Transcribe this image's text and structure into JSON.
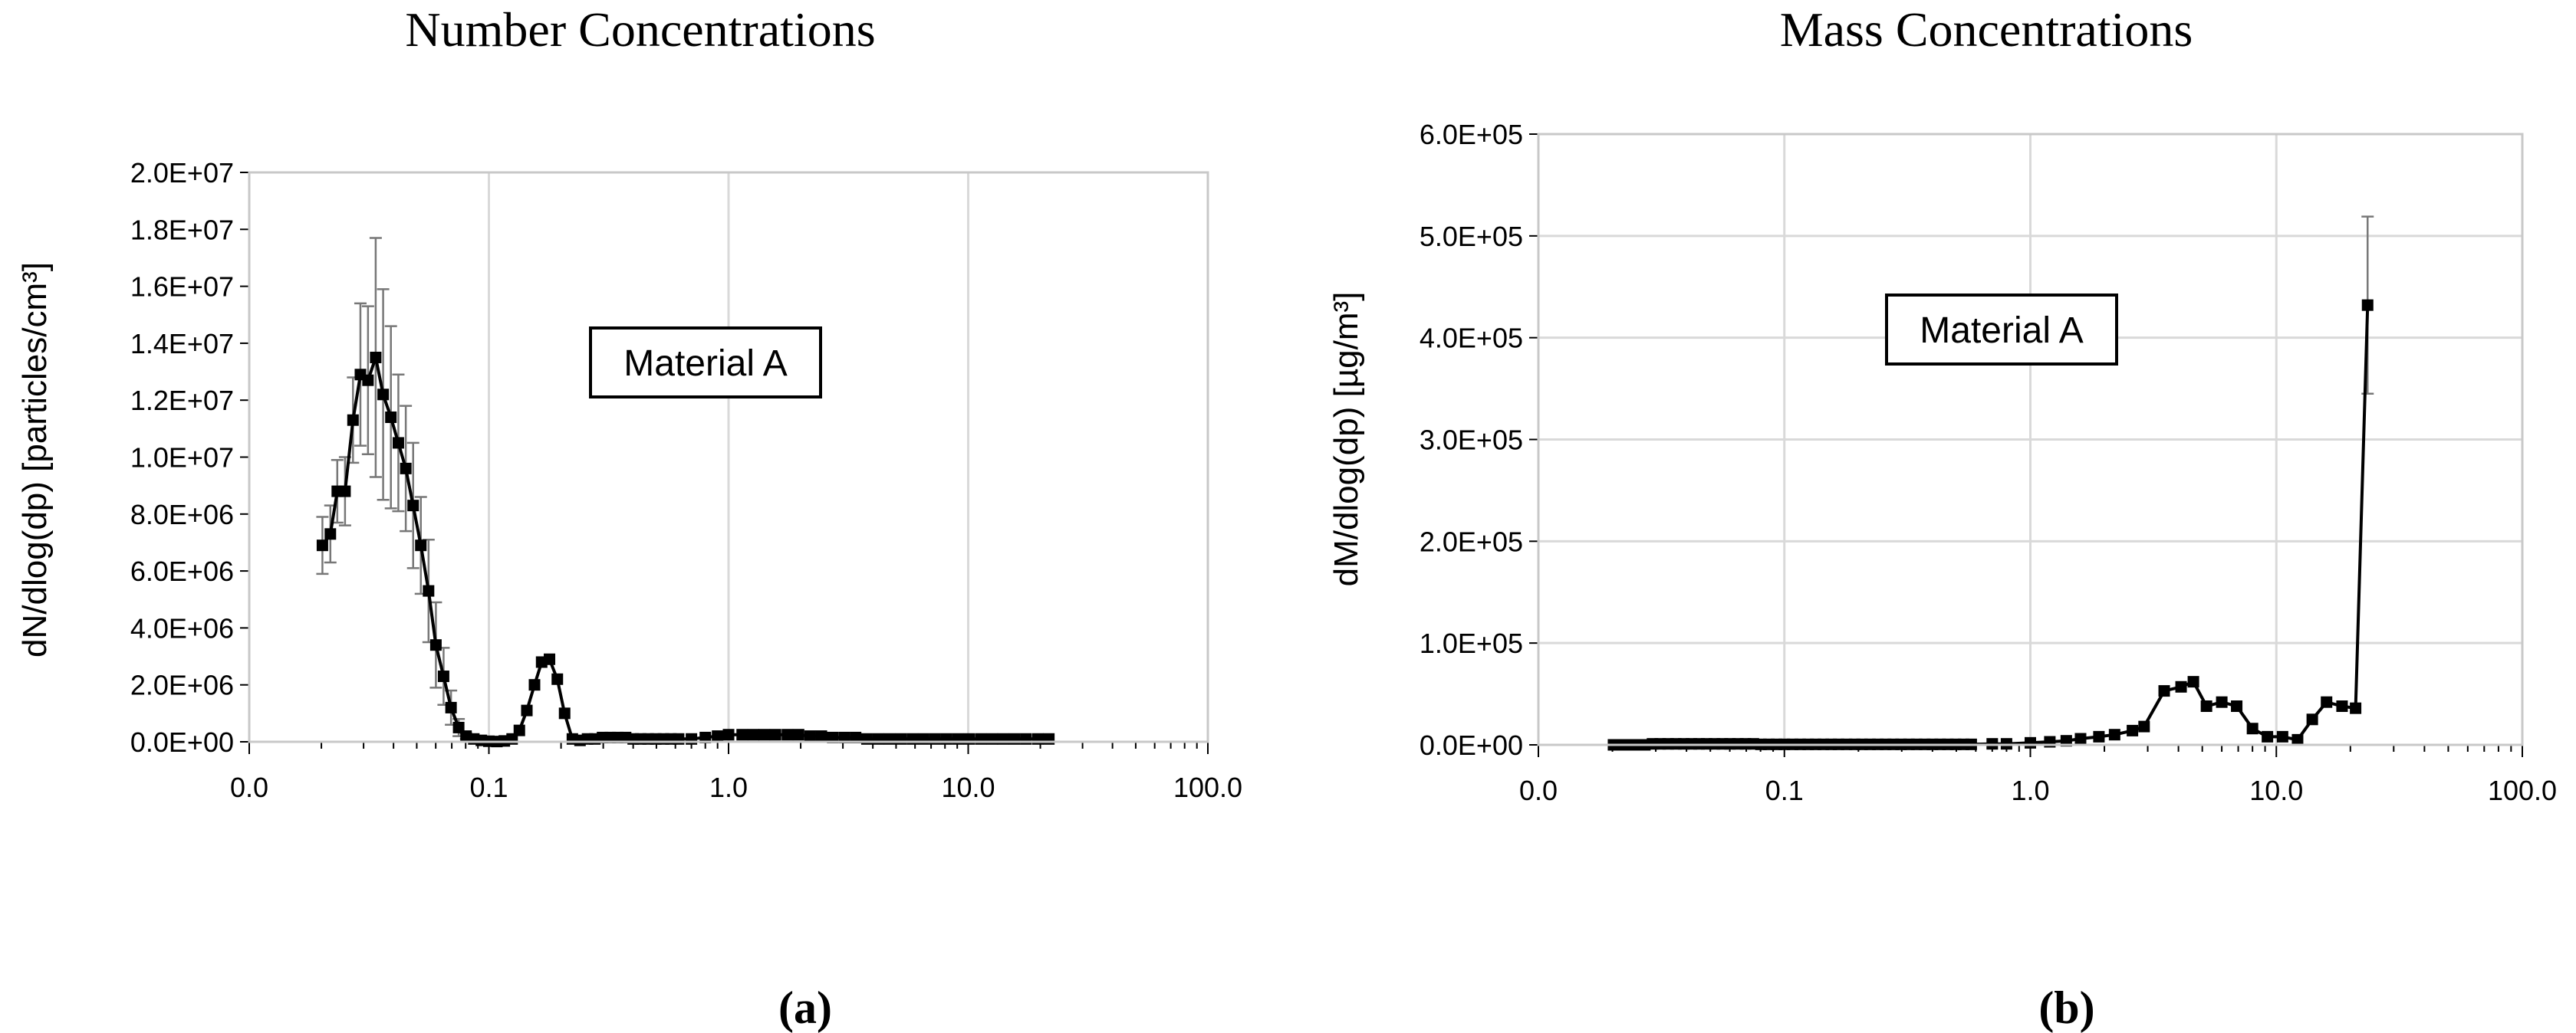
{
  "chart_data": [
    {
      "type": "line",
      "title": "Number Concentrations",
      "caption": "(a)",
      "xlabel": "",
      "ylabel": "dN/dlog(dp) [particles/cm³]",
      "xscale": "log",
      "xlim": [
        0.01,
        100
      ],
      "ylim": [
        0,
        20000000
      ],
      "grid": "vertical",
      "xticks": [
        "0.0",
        "0.1",
        "1.0",
        "10.0",
        "100.0"
      ],
      "yticks": [
        "0.0E+00",
        "2.0E+06",
        "4.0E+06",
        "6.0E+06",
        "8.0E+06",
        "1.0E+07",
        "1.2E+07",
        "1.4E+07",
        "1.6E+07",
        "1.8E+07",
        "2.0E+07"
      ],
      "annotation": "Material A",
      "series": [
        {
          "x": [
            0.0202,
            0.0218,
            0.0233,
            0.0251,
            0.0271,
            0.0291,
            0.0313,
            0.0337,
            0.0362,
            0.039,
            0.0419,
            0.045,
            0.0483,
            0.052,
            0.056,
            0.0601,
            0.0647,
            0.0695,
            0.0748,
            0.0803,
            0.0865,
            0.093,
            0.1,
            0.108,
            0.116,
            0.125,
            0.134,
            0.144,
            0.155,
            0.166,
            0.179,
            0.193,
            0.207,
            0.223,
            0.24,
            0.258,
            0.277,
            0.298,
            0.321,
            0.345,
            0.372,
            0.4,
            0.43,
            0.462,
            0.497,
            0.535,
            0.575,
            0.619,
            0.7,
            0.8,
            0.9,
            1.0,
            1.14,
            1.27,
            1.41,
            1.57,
            1.76,
            1.96,
            2.19,
            2.44,
            2.72,
            3.04,
            3.39,
            3.78,
            4.22,
            4.7,
            5.24,
            5.85,
            6.52,
            7.28,
            8.12,
            9.06,
            10.1,
            11.3,
            12.6,
            14.0,
            15.6,
            17.4,
            19.5,
            21.7
          ],
          "values": [
            6900000,
            7300000,
            8800000,
            8800000,
            11300000,
            12900000,
            12700000,
            13500000,
            12200000,
            11400000,
            10500000,
            9600000,
            8300000,
            6900000,
            5300000,
            3400000,
            2300000,
            1200000,
            500000,
            200000,
            100000,
            50000,
            20000,
            10000,
            30000,
            100000,
            400000,
            1100000,
            2000000,
            2800000,
            2900000,
            2200000,
            1000000,
            100000,
            50000,
            100000,
            100000,
            150000,
            150000,
            150000,
            150000,
            100000,
            100000,
            100000,
            100000,
            100000,
            100000,
            100000,
            100000,
            150000,
            200000,
            250000,
            250000,
            250000,
            250000,
            250000,
            250000,
            250000,
            200000,
            200000,
            150000,
            150000,
            150000,
            100000,
            100000,
            100000,
            100000,
            100000,
            100000,
            100000,
            100000,
            100000,
            100000,
            100000,
            100000,
            100000,
            100000,
            100000,
            100000,
            100000
          ],
          "error": [
            1000000,
            1000000,
            1100000,
            1200000,
            1500000,
            2500000,
            2600000,
            4200000,
            3700000,
            3200000,
            2400000,
            2200000,
            2200000,
            1700000,
            1800000,
            1500000,
            1000000,
            600000,
            300000,
            100000,
            0,
            0,
            0,
            0,
            0,
            0,
            0,
            0,
            0,
            0,
            0,
            0,
            0,
            0,
            0,
            0,
            0,
            0,
            0,
            0,
            0,
            0,
            0,
            0,
            0,
            0,
            0,
            0,
            0,
            0,
            0,
            0,
            0,
            0,
            0,
            0,
            0,
            0,
            0,
            0,
            0,
            0,
            0,
            0,
            0,
            0,
            0,
            0,
            0,
            0,
            0,
            0,
            0,
            0,
            0,
            0,
            0,
            0,
            0,
            0
          ]
        }
      ]
    },
    {
      "type": "line",
      "title": "Mass Concentrations",
      "caption": "(b)",
      "xlabel": "",
      "ylabel": "dM/dlog(dp) [µg/m³]",
      "xscale": "log",
      "xlim": [
        0.01,
        100
      ],
      "ylim": [
        0,
        600000
      ],
      "grid": "both",
      "xticks": [
        "0.0",
        "0.1",
        "1.0",
        "10.0",
        "100.0"
      ],
      "yticks": [
        "0.0E+00",
        "1.0E+05",
        "2.0E+05",
        "3.0E+05",
        "4.0E+05",
        "5.0E+05",
        "6.0E+05"
      ],
      "annotation": "Material A",
      "series": [
        {
          "x": [
            0.0202,
            0.0218,
            0.0233,
            0.0251,
            0.0271,
            0.0291,
            0.0313,
            0.0337,
            0.0362,
            0.039,
            0.0419,
            0.045,
            0.0483,
            0.052,
            0.056,
            0.0601,
            0.0647,
            0.0695,
            0.0748,
            0.0803,
            0.0865,
            0.093,
            0.1,
            0.108,
            0.116,
            0.125,
            0.134,
            0.144,
            0.155,
            0.166,
            0.179,
            0.193,
            0.207,
            0.223,
            0.24,
            0.258,
            0.277,
            0.298,
            0.321,
            0.345,
            0.372,
            0.4,
            0.43,
            0.462,
            0.497,
            0.535,
            0.575,
            0.7,
            0.8,
            1.0,
            1.2,
            1.4,
            1.6,
            1.9,
            2.2,
            2.6,
            2.9,
            3.5,
            4.1,
            4.6,
            5.2,
            6.0,
            6.9,
            8.0,
            9.2,
            10.6,
            12.2,
            14.0,
            16.0,
            18.5,
            21.0,
            23.5
          ],
          "values": [
            0,
            0,
            0,
            0,
            0,
            1000,
            1000,
            1000,
            1000,
            1000,
            1000,
            1000,
            1000,
            1000,
            1000,
            1000,
            1000,
            1000,
            1000,
            500,
            500,
            500,
            500,
            500,
            500,
            500,
            500,
            500,
            500,
            500,
            500,
            500,
            500,
            500,
            500,
            500,
            500,
            500,
            500,
            500,
            500,
            500,
            500,
            500,
            500,
            500,
            500,
            1000,
            1000,
            2000,
            3000,
            4000,
            6000,
            8000,
            10000,
            14000,
            18000,
            53000,
            57000,
            62000,
            38000,
            42000,
            38000,
            16000,
            8000,
            8000,
            5000,
            25000,
            42000,
            38000,
            36000,
            432000
          ],
          "error": [
            0,
            0,
            0,
            0,
            0,
            0,
            0,
            0,
            0,
            0,
            0,
            0,
            0,
            0,
            0,
            0,
            0,
            0,
            0,
            0,
            0,
            0,
            0,
            0,
            0,
            0,
            0,
            0,
            0,
            0,
            0,
            0,
            0,
            0,
            0,
            0,
            0,
            0,
            0,
            0,
            0,
            0,
            0,
            0,
            0,
            0,
            0,
            0,
            0,
            0,
            0,
            0,
            0,
            0,
            0,
            0,
            0,
            0,
            0,
            0,
            0,
            0,
            0,
            0,
            0,
            0,
            0,
            0,
            0,
            0,
            0,
            87000
          ]
        }
      ]
    }
  ]
}
